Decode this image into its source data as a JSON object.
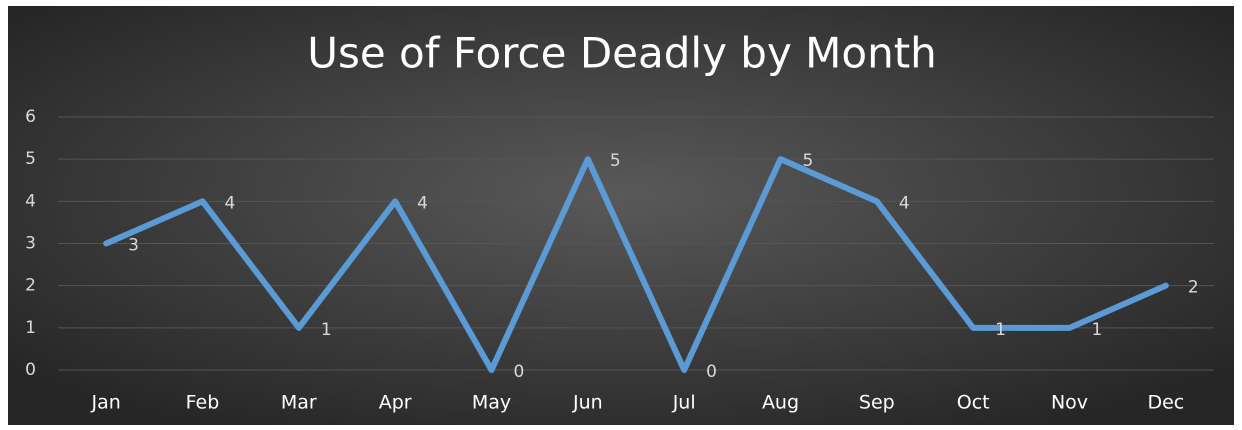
{
  "chart_data": {
    "type": "line",
    "title": "Use of Force Deadly by Month",
    "categories": [
      "Jan",
      "Feb",
      "Mar",
      "Apr",
      "May",
      "Jun",
      "Jul",
      "Aug",
      "Sep",
      "Oct",
      "Nov",
      "Dec"
    ],
    "values": [
      3,
      4,
      1,
      4,
      0,
      5,
      0,
      5,
      4,
      1,
      1,
      2
    ],
    "color": "#5b9bd5",
    "ylim": [
      0,
      6
    ],
    "yticks": [
      0,
      1,
      2,
      3,
      4,
      5,
      6
    ],
    "grid": true
  }
}
